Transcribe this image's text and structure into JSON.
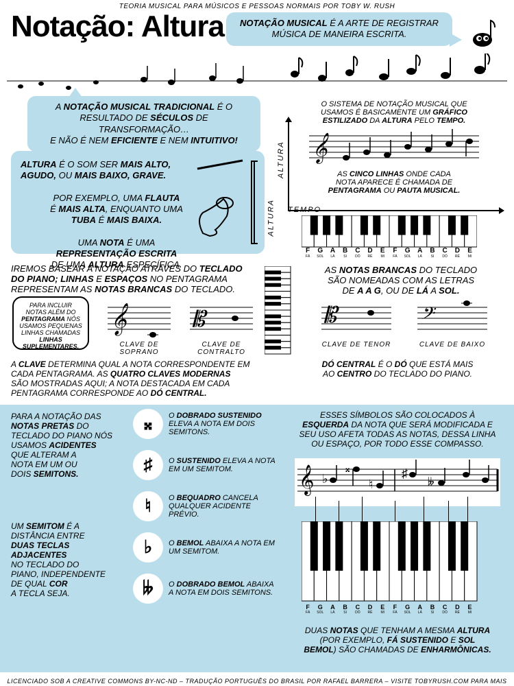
{
  "colors": {
    "bubble_bg": "#b9ddea",
    "text": "#000000",
    "page_bg": "#ffffff"
  },
  "header": {
    "topline": "TEORIA MUSICAL PARA MÚSICOS E PESSOAS NORMAIS POR TOBY W. RUSH",
    "title": "Notação: Altura"
  },
  "bubble1": {
    "text_pre": "",
    "em1": "NOTAÇÃO MUSICAL",
    "text_post": " É A ARTE DE REGISTRAR MÚSICA DE MANEIRA ESCRITA."
  },
  "bubble2": {
    "l1a": "A ",
    "l1b": "NOTAÇÃO MUSICAL TRADICIONAL",
    "l1c": " É O",
    "l2a": "RESULTADO DE ",
    "l2b": "SÉCULOS",
    "l2c": " DE TRANSFORMAÇÃO…",
    "l3a": "E NÃO É NEM ",
    "l3b": "EFICIENTE",
    "l3c": " E NEM ",
    "l3d": "INTUITIVO!"
  },
  "right1": {
    "l1": "O SISTEMA DE NOTAÇÃO MUSICAL QUE",
    "l2a": "USAMOS É BASICAMENTE UM ",
    "l2b": "GRÁFICO",
    "l3a": "ESTILIZADO",
    "l3b": " DA ",
    "l3c": "ALTURA",
    "l3d": " PELO ",
    "l3e": "TEMPO."
  },
  "right2": {
    "l1a": "AS ",
    "l1b": "CINCO LINHAS",
    "l1c": " ONDE CADA",
    "l2": "NOTA APARECE É CHAMADA DE",
    "l3a": "PENTAGRAMA",
    "l3b": " OU ",
    "l3c": "PAUTA MUSICAL."
  },
  "axis": {
    "altura": "ALTURA",
    "tempo": "TEMPO"
  },
  "bubble3": {
    "l1a": "ALTURA",
    "l1b": " É O SOM SER ",
    "l1c": "MAIS ALTO,",
    "l2a": "AGUDO,",
    "l2b": " OU ",
    "l2c": "MAIS BAIXO, GRAVE.",
    "l3a": "POR EXEMPLO, UMA ",
    "l3b": "FLAUTA",
    "l4a": "É ",
    "l4b": "MAIS ALTA",
    "l4c": ", ENQUANTO UMA",
    "l5a": "TUBA",
    "l5b": " É ",
    "l5c": "MAIS BAIXA.",
    "l6a": "UMA ",
    "l6b": "NOTA",
    "l6c": " É UMA",
    "l7a": "REPRESENTAÇÃO ESCRITA",
    "l8a": "DE UMA ",
    "l8b": "ALTURA",
    "l8c": " ESPECÍFICA.",
    "altura_label": "ALTURA"
  },
  "keyboard_notes": [
    "F",
    "G",
    "A",
    "B",
    "C",
    "D",
    "E",
    "F",
    "G",
    "A",
    "B",
    "C",
    "D",
    "E"
  ],
  "keyboard_solfege": [
    "FÁ",
    "SOL",
    "LÁ",
    "SI",
    "DÓ",
    "RÉ",
    "MI",
    "FÁ",
    "SOL",
    "LÁ",
    "SI",
    "DÓ",
    "RÉ",
    "MI"
  ],
  "para1": {
    "l1a": "IREMOS BASEAR A NOTAÇÃO ATRAVÉS DO ",
    "l1b": "TECLADO",
    "l2a": "DO PIANO; LINHAS",
    "l2b": " E ",
    "l2c": "ESPAÇOS",
    "l2d": " NO PENTAGRAMA",
    "l3a": "REPRESENTAM AS ",
    "l3b": "NOTAS BRANCAS",
    "l3c": " DO TECLADO."
  },
  "para2": {
    "l1a": "AS ",
    "l1b": "NOTAS BRANCAS",
    "l1c": " DO TECLADO",
    "l2": "SÃO NOMEADAS COM AS LETRAS",
    "l3a": "DE ",
    "l3b": "A A G",
    "l3c": ", OU DE ",
    "l3d": "LÁ",
    "l3e": " A ",
    "l3f": "SOL."
  },
  "suppbox": {
    "l1": "PARA INCLUIR",
    "l2": "NOTAS ALÉM DO",
    "l3": "PENTAGRAMA",
    "l3b": " NÓS",
    "l4": "USAMOS PEQUENAS",
    "l5": "LINHAS CHAMADAS",
    "l6": "LINHAS",
    "l7": "SUPLEMENTARES."
  },
  "clefs": {
    "c1": "CLAVE DE SOPRANO",
    "c2": "CLAVE DE CONTRALTO",
    "c3": "CLAVE DE TENOR",
    "c4": "CLAVE DE BAIXO"
  },
  "para3": {
    "l1a": "A ",
    "l1b": "CLAVE",
    "l1c": " DETERMINA QUAL A NOTA CORRESPONDENTE EM",
    "l2a": "CADA PENTAGRAMA. AS ",
    "l2b": "QUATRO CLAVES MODERNAS",
    "l3": "SÃO MOSTRADAS AQUI; A NOTA DESTACADA EM CADA",
    "l4a": "PENTAGRAMA CORRESPONDE AO ",
    "l4b": "DÓ CENTRAL."
  },
  "para4": {
    "l1a": "DÓ CENTRAL",
    "l1b": " É O ",
    "l1c": "DÓ",
    "l1d": " QUE ESTÁ MAIS",
    "l2a": "AO ",
    "l2b": "CENTRO",
    "l2c": " DO TECLADO DO PIANO."
  },
  "lb_l": {
    "l1": "PARA A NOTAÇÃO DAS",
    "l2": "NOTAS PRETAS",
    "l2b": " DO",
    "l3": "TECLADO DO PIANO NÓS",
    "l4a": "USAMOS ",
    "l4b": "ACIDENTES",
    "l5": "QUE ALTERAM A",
    "l6": "NOTA EM UM OU",
    "l7a": "DOIS ",
    "l7b": "SEMITONS."
  },
  "lb_l2": {
    "l1a": "UM ",
    "l1b": "SEMITOM",
    "l1c": " É A",
    "l2": "DISTÂNCIA ENTRE",
    "l3": "DUAS TECLAS",
    "l4": "ADJACENTES",
    "l5": "NO TECLADO DO",
    "l6": "PIANO, INDEPENDENTE",
    "l7a": "DE QUAL ",
    "l7b": "COR",
    "l8": "A TECLA SEJA."
  },
  "accidentals": [
    {
      "sym": "𝄪",
      "name": "DOBRADO SUSTENIDO",
      "desc": " ELEVA A NOTA EM DOIS SEMITONS."
    },
    {
      "sym": "♯",
      "name": "SUSTENIDO",
      "desc": " ELEVA A NOTA EM UM SEMITOM."
    },
    {
      "sym": "♮",
      "name": "BEQUADRO",
      "desc": " CANCELA QUALQUER ACIDENTE PRÉVIO."
    },
    {
      "sym": "♭",
      "name": "BEMOL",
      "desc": " ABAIXA A NOTA EM UM SEMITOM."
    },
    {
      "sym": "𝄫",
      "name": "DOBRADO BEMOL",
      "desc": " ABAIXA A NOTA EM DOIS SEMITONS."
    }
  ],
  "lb_r1": {
    "l1": "ESSES SÍMBOLOS SÃO COLOCADOS À",
    "l2a": "ESQUERDA",
    "l2b": " DA NOTA QUE SERÁ MODIFICADA E",
    "l3": "SEU USO AFETA TODAS AS NOTAS, DESSA LINHA",
    "l4": "OU ESPAÇO, POR TODO ESSE COMPASSO."
  },
  "lb_r2": {
    "l1a": "DUAS ",
    "l1b": "NOTAS",
    "l1c": " QUE TENHAM A MESMA ",
    "l1d": "ALTURA",
    "l2a": "(POR EXEMPLO, ",
    "l2b": "FÁ SUSTENIDO",
    "l2c": " E ",
    "l2d": "SOL",
    "l3a": "BEMOL",
    "l3b": ") SÃO CHAMADAS DE ",
    "l3c": "ENHARMÔNICAS."
  },
  "footer": "LICENCIADO SOB A CREATIVE COMMONS BY-NC-ND – TRADUÇÃO PORTUGUÊS DO BRASIL POR RAFAEL BARRERA – VISITE TOBYRUSH.COM PARA MAIS"
}
